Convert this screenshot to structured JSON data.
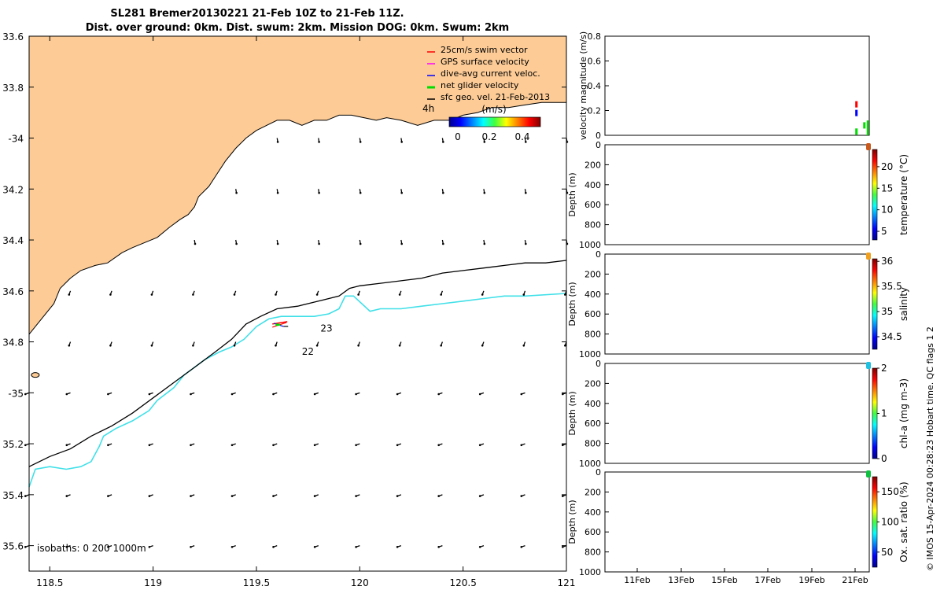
{
  "title": {
    "line1": "SL281 Bremer20130221 21-Feb 10Z to 21-Feb 11Z.",
    "line2": "Dist. over ground: 0km. Dist. swum: 2km. Mission DOG: 0km. Swum: 2km"
  },
  "footer_side": "© IMOS 15-Apr-2024 00:28:23 Hobart time. QC flags 1  2",
  "colors": {
    "land": "#fccb96",
    "isobath_200": "#40e0e8",
    "isobath_1000": "#000000",
    "swim": "#ff0000",
    "gps": "#ff00ff",
    "dive": "#0000ff",
    "net": "#00dd00",
    "geo": "#000000"
  },
  "chart_data": [
    {
      "type": "map",
      "name": "track map",
      "xlim": [
        118.4,
        121.0
      ],
      "ylim": [
        -35.7,
        -33.6
      ],
      "xticks": [
        118.5,
        119,
        119.5,
        120,
        120.5,
        121
      ],
      "xtick_labels": [
        "118.5",
        "119",
        "119.5",
        "120",
        "120.5",
        "121"
      ],
      "yticks": [
        -33.6,
        -33.8,
        -34,
        -34.2,
        -34.4,
        -34.6,
        -34.8,
        -35,
        -35.2,
        -35.4,
        -35.6
      ],
      "ytick_labels": [
        "33.6",
        "33.8",
        "-34",
        "34.2",
        "34.4",
        "34.6",
        "34.8",
        "-35",
        "35.2",
        "35.4",
        "35.6"
      ],
      "legend": [
        {
          "label": "25cm/s swim vector",
          "color": "#ff0000"
        },
        {
          "label": "GPS surface velocity",
          "color": "#ff00ff"
        },
        {
          "label": "dive-avg current veloc.",
          "color": "#0000ff"
        },
        {
          "label": "net glider velocity",
          "color": "#00dd00"
        },
        {
          "label": "sfc geo. vel. 21-Feb-2013",
          "color": "#000000"
        }
      ],
      "time_label": "4h",
      "colorbar": {
        "label": "(m/s)",
        "min": 0,
        "max": 0.5,
        "ticks": [
          "0",
          "0.2",
          "0.4"
        ]
      },
      "annotations": [
        {
          "text": "23",
          "x": 119.81,
          "y": -34.76
        },
        {
          "text": "22",
          "x": 119.72,
          "y": -34.85
        }
      ],
      "glider_position": {
        "x": 119.6,
        "y": -34.73
      },
      "isobath_text": "isobaths: 0   200  1000m",
      "coastline": [
        [
          118.4,
          -34.77
        ],
        [
          118.45,
          -34.72
        ],
        [
          118.52,
          -34.65
        ],
        [
          118.55,
          -34.59
        ],
        [
          118.6,
          -34.55
        ],
        [
          118.65,
          -34.52
        ],
        [
          118.72,
          -34.5
        ],
        [
          118.78,
          -34.49
        ],
        [
          118.85,
          -34.45
        ],
        [
          118.9,
          -34.43
        ],
        [
          118.96,
          -34.41
        ],
        [
          119.02,
          -34.39
        ],
        [
          119.08,
          -34.35
        ],
        [
          119.13,
          -34.32
        ],
        [
          119.17,
          -34.3
        ],
        [
          119.2,
          -34.27
        ],
        [
          119.22,
          -34.23
        ],
        [
          119.27,
          -34.19
        ],
        [
          119.31,
          -34.14
        ],
        [
          119.35,
          -34.09
        ],
        [
          119.4,
          -34.04
        ],
        [
          119.45,
          -34.0
        ],
        [
          119.5,
          -33.97
        ],
        [
          119.55,
          -33.95
        ],
        [
          119.6,
          -33.93
        ],
        [
          119.66,
          -33.93
        ],
        [
          119.72,
          -33.95
        ],
        [
          119.78,
          -33.93
        ],
        [
          119.84,
          -33.93
        ],
        [
          119.9,
          -33.91
        ],
        [
          119.96,
          -33.91
        ],
        [
          120.02,
          -33.92
        ],
        [
          120.08,
          -33.93
        ],
        [
          120.13,
          -33.92
        ],
        [
          120.2,
          -33.93
        ],
        [
          120.28,
          -33.95
        ],
        [
          120.36,
          -33.93
        ],
        [
          120.44,
          -33.93
        ],
        [
          120.5,
          -33.91
        ],
        [
          120.57,
          -33.9
        ],
        [
          120.64,
          -33.88
        ],
        [
          120.72,
          -33.88
        ],
        [
          120.8,
          -33.87
        ],
        [
          120.88,
          -33.86
        ],
        [
          121.0,
          -33.86
        ]
      ],
      "isobath_1000m": [
        [
          118.4,
          -35.29
        ],
        [
          118.5,
          -35.25
        ],
        [
          118.6,
          -35.22
        ],
        [
          118.7,
          -35.17
        ],
        [
          118.8,
          -35.13
        ],
        [
          118.9,
          -35.08
        ],
        [
          119.0,
          -35.02
        ],
        [
          119.1,
          -34.96
        ],
        [
          119.2,
          -34.9
        ],
        [
          119.3,
          -34.84
        ],
        [
          119.38,
          -34.79
        ],
        [
          119.45,
          -34.73
        ],
        [
          119.52,
          -34.7
        ],
        [
          119.6,
          -34.67
        ],
        [
          119.7,
          -34.66
        ],
        [
          119.8,
          -34.64
        ],
        [
          119.9,
          -34.62
        ],
        [
          119.95,
          -34.59
        ],
        [
          120.0,
          -34.58
        ],
        [
          120.1,
          -34.57
        ],
        [
          120.2,
          -34.56
        ],
        [
          120.3,
          -34.55
        ],
        [
          120.4,
          -34.53
        ],
        [
          120.5,
          -34.52
        ],
        [
          120.6,
          -34.51
        ],
        [
          120.7,
          -34.5
        ],
        [
          120.8,
          -34.49
        ],
        [
          120.9,
          -34.49
        ],
        [
          121.0,
          -34.48
        ]
      ],
      "isobath_200m": [
        [
          118.4,
          -35.37
        ],
        [
          118.43,
          -35.3
        ],
        [
          118.5,
          -35.29
        ],
        [
          118.58,
          -35.3
        ],
        [
          118.65,
          -35.29
        ],
        [
          118.7,
          -35.27
        ],
        [
          118.74,
          -35.21
        ],
        [
          118.76,
          -35.17
        ],
        [
          118.82,
          -35.14
        ],
        [
          118.9,
          -35.11
        ],
        [
          118.98,
          -35.07
        ],
        [
          119.02,
          -35.03
        ],
        [
          119.1,
          -34.98
        ],
        [
          119.15,
          -34.93
        ],
        [
          119.2,
          -34.9
        ],
        [
          119.25,
          -34.87
        ],
        [
          119.32,
          -34.84
        ],
        [
          119.38,
          -34.82
        ],
        [
          119.44,
          -34.79
        ],
        [
          119.5,
          -34.74
        ],
        [
          119.56,
          -34.71
        ],
        [
          119.62,
          -34.7
        ],
        [
          119.7,
          -34.7
        ],
        [
          119.78,
          -34.7
        ],
        [
          119.85,
          -34.69
        ],
        [
          119.9,
          -34.67
        ],
        [
          119.93,
          -34.62
        ],
        [
          119.97,
          -34.62
        ],
        [
          120.05,
          -34.68
        ],
        [
          120.1,
          -34.67
        ],
        [
          120.2,
          -34.67
        ],
        [
          120.3,
          -34.66
        ],
        [
          120.4,
          -34.65
        ],
        [
          120.5,
          -34.64
        ],
        [
          120.6,
          -34.63
        ],
        [
          120.7,
          -34.62
        ],
        [
          120.8,
          -34.62
        ],
        [
          121.0,
          -34.61
        ]
      ]
    },
    {
      "type": "line",
      "name": "velocity magnitude",
      "ylabel": "velocity magnitude (m/s)",
      "ylim": [
        0,
        0.8
      ],
      "yticks": [
        "0",
        "0.2",
        "0.4",
        "0.6",
        "0.8"
      ],
      "series": [
        {
          "name": "swim",
          "color": "#ff0000",
          "points": [
            [
              0.95,
              0.25
            ]
          ]
        },
        {
          "name": "dive",
          "color": "#0000ff",
          "points": [
            [
              0.95,
              0.18
            ]
          ]
        },
        {
          "name": "net",
          "color": "#00dd00",
          "points": [
            [
              0.95,
              0.03
            ],
            [
              0.98,
              0.08
            ]
          ]
        }
      ]
    },
    {
      "type": "scatter",
      "name": "temperature profile",
      "ylabel": "Depth (m)",
      "ylim": [
        1000,
        0
      ],
      "yticks": [
        "0",
        "200",
        "400",
        "600",
        "800",
        "1000"
      ],
      "colorbar": {
        "label": "temperature (°C)",
        "min": 3,
        "max": 24,
        "ticks": [
          "5",
          "10",
          "15",
          "20"
        ]
      },
      "marker_color": "#c85a1e"
    },
    {
      "type": "scatter",
      "name": "salinity profile",
      "ylabel": "Depth (m)",
      "ylim": [
        1000,
        0
      ],
      "yticks": [
        "0",
        "200",
        "400",
        "600",
        "800",
        "1000"
      ],
      "colorbar": {
        "label": "salinity",
        "min": 34.25,
        "max": 36.05,
        "ticks": [
          "34.5",
          "35",
          "35.5",
          "36"
        ]
      },
      "marker_color": "#f0a020"
    },
    {
      "type": "scatter",
      "name": "chl-a profile",
      "ylabel": "Depth (m)",
      "ylim": [
        1000,
        0
      ],
      "yticks": [
        "0",
        "200",
        "400",
        "600",
        "800",
        "1000"
      ],
      "colorbar": {
        "label": "chl-a (mg m-3)",
        "min": 0,
        "max": 2,
        "ticks": [
          "0",
          "1",
          "2"
        ]
      },
      "marker_color": "#20c0e0"
    },
    {
      "type": "scatter",
      "name": "oxygen saturation profile",
      "ylabel": "Depth (m)",
      "ylim": [
        1000,
        0
      ],
      "yticks": [
        "0",
        "200",
        "400",
        "600",
        "800",
        "1000"
      ],
      "xtick_labels": [
        "11Feb",
        "13Feb",
        "15Feb",
        "17Feb",
        "19Feb",
        "21Feb"
      ],
      "colorbar": {
        "label": "Ox. sat. ratio (%)",
        "min": 25,
        "max": 175,
        "ticks": [
          "50",
          "100",
          "150"
        ]
      },
      "marker_color": "#10c040"
    }
  ]
}
